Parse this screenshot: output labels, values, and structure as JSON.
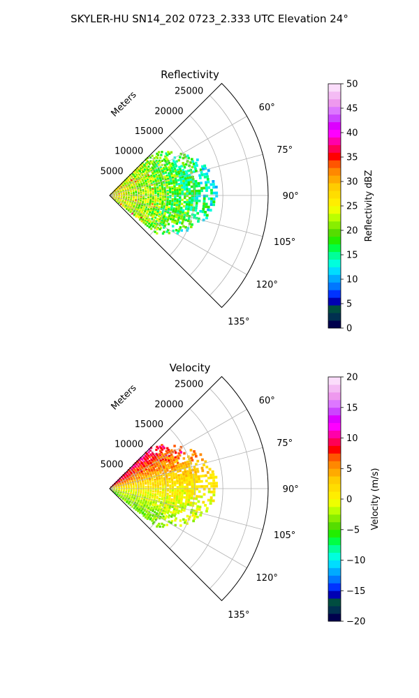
{
  "suptitle": "SKYLER-HU  SN14_202  0723_2.333 UTC Elevation 24°",
  "chart_data": [
    {
      "type": "heatmap",
      "projection": "polar-sector",
      "title": "Reflectivity",
      "range_label": "Meters",
      "range_ticks": [
        5000,
        10000,
        15000,
        20000,
        25000
      ],
      "range_tick_labels": [
        "5000",
        "10000",
        "15000",
        "20000",
        "25000"
      ],
      "rmax": 28000,
      "azimuth_range": [
        45,
        135
      ],
      "azimuth_ticks": [
        60,
        75,
        90,
        105,
        120,
        135
      ],
      "azimuth_tick_labels": [
        "60°",
        "75°",
        "90°",
        "105°",
        "120°",
        "135°"
      ],
      "grid": true,
      "colorbar": {
        "label": "Reflectivity dBZ",
        "vmin": 0,
        "vmax": 50,
        "ticks": [
          0,
          5,
          10,
          15,
          20,
          25,
          30,
          35,
          40,
          45,
          50
        ],
        "tick_labels": [
          "0",
          "5",
          "10",
          "15",
          "20",
          "25",
          "30",
          "35",
          "40",
          "45",
          "50"
        ],
        "colors": [
          "#00004d",
          "#003050",
          "#004d40",
          "#0000b3",
          "#0033ff",
          "#0077ff",
          "#00aaff",
          "#00ddff",
          "#00ffdd",
          "#00ff99",
          "#00ff44",
          "#22ee00",
          "#55dd00",
          "#88ee00",
          "#bbff00",
          "#eeff00",
          "#ffee00",
          "#ffdd00",
          "#ffcc00",
          "#ffaa00",
          "#ff8800",
          "#ff5500",
          "#ff0000",
          "#ff0055",
          "#ff00aa",
          "#ff00ff",
          "#dd00ff",
          "#cc44ff",
          "#dd77ff",
          "#ee99ee",
          "#f4bbf4",
          "#fbddfb"
        ]
      },
      "echo": {
        "field": "reflectivity_dBZ",
        "az_min": 45,
        "az_max": 130,
        "max_range": 19000,
        "near_range_value": 26,
        "far_range_value": 14,
        "note_value_range": [
          10,
          38
        ]
      }
    },
    {
      "type": "heatmap",
      "projection": "polar-sector",
      "title": "Velocity",
      "range_label": "Meters",
      "range_ticks": [
        5000,
        10000,
        15000,
        20000,
        25000
      ],
      "range_tick_labels": [
        "5000",
        "10000",
        "15000",
        "20000",
        "25000"
      ],
      "rmax": 28000,
      "azimuth_range": [
        45,
        135
      ],
      "azimuth_ticks": [
        60,
        75,
        90,
        105,
        120,
        135
      ],
      "azimuth_tick_labels": [
        "60°",
        "75°",
        "90°",
        "105°",
        "120°",
        "135°"
      ],
      "grid": true,
      "colorbar": {
        "label": "Velocity (m/s)",
        "vmin": -20,
        "vmax": 20,
        "ticks": [
          -20,
          -15,
          -10,
          -5,
          0,
          5,
          10,
          15,
          20
        ],
        "tick_labels": [
          "−20",
          "−15",
          "−10",
          "−5",
          "0",
          "5",
          "10",
          "15",
          "20"
        ],
        "colors": [
          "#00004d",
          "#003050",
          "#004d40",
          "#0000b3",
          "#0033ff",
          "#0077ff",
          "#00aaff",
          "#00ddff",
          "#00ffdd",
          "#00ff99",
          "#00ff44",
          "#22ee00",
          "#55dd00",
          "#88ee00",
          "#bbff00",
          "#eeff00",
          "#ffee00",
          "#ffdd00",
          "#ffcc00",
          "#ffaa00",
          "#ff8800",
          "#ff5500",
          "#ff0000",
          "#ff0055",
          "#ff00aa",
          "#ff00ff",
          "#dd00ff",
          "#cc44ff",
          "#dd77ff",
          "#ee99ee",
          "#f4bbf4",
          "#fbddfb"
        ]
      },
      "echo": {
        "field": "radial_velocity_ms",
        "az_min": 45,
        "az_max": 130,
        "max_range": 19000,
        "north_value": 10,
        "center_value": 1,
        "south_value": -4
      }
    }
  ]
}
